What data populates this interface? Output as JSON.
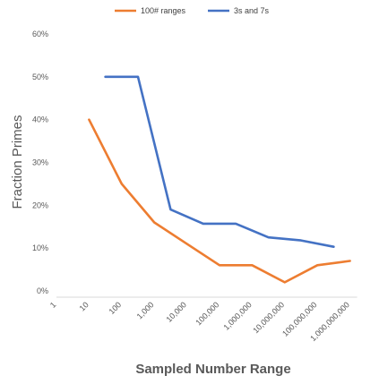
{
  "chart_data": {
    "type": "line",
    "title": "",
    "xlabel": "Sampled Number Range",
    "ylabel": "Fraction Primes",
    "categories": [
      "1",
      "10",
      "100",
      "1,000",
      "10,000",
      "100,000",
      "1,000,000",
      "10,000,000",
      "100,000,000",
      "1,000,000,000"
    ],
    "x_scale": "log10",
    "ylim": [
      0,
      60
    ],
    "y_ticks": [
      "0%",
      "10%",
      "20%",
      "30%",
      "40%",
      "50%",
      "60%"
    ],
    "y_unit": "%",
    "grid": false,
    "legend": "top",
    "series": [
      {
        "name": "100# ranges",
        "color": "#ED7D31",
        "x": [
          10,
          100,
          1000,
          10000,
          100000,
          1000000,
          10000000,
          100000000,
          1000000000
        ],
        "values": [
          40,
          25,
          16,
          11,
          6,
          6,
          2,
          6,
          7
        ]
      },
      {
        "name": "3s and 7s",
        "color": "#4472C4",
        "x": [
          31.6,
          316.2,
          3162,
          31623,
          316228,
          3162278,
          31622777,
          316227766
        ],
        "values": [
          50,
          50,
          19,
          15.7,
          15.7,
          12.5,
          11.8,
          10.3
        ]
      }
    ]
  }
}
